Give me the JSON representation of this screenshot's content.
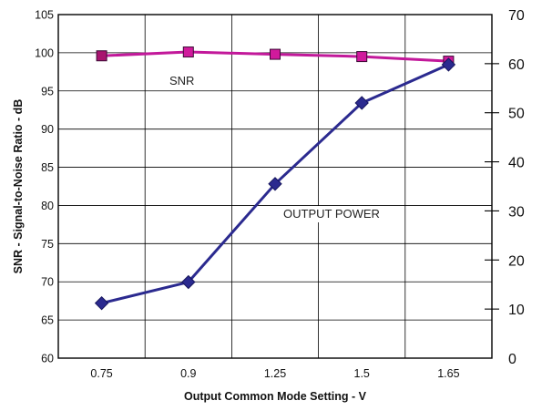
{
  "chart_data": {
    "type": "line",
    "title": "",
    "xlabel": "Output Common Mode Setting - V",
    "ylabel": "SNR - Signal-to-Noise Ratio - dB",
    "ylabel_right": "",
    "categories": [
      "0.75",
      "0.9",
      "1.25",
      "1.5",
      "1.65"
    ],
    "ylim": [
      60,
      105
    ],
    "yticks": [
      "60",
      "65",
      "70",
      "75",
      "80",
      "85",
      "90",
      "95",
      "100",
      "105"
    ],
    "ylim_right": [
      0,
      70
    ],
    "yticks_right": [
      "0",
      "10",
      "20",
      "30",
      "40",
      "50",
      "60",
      "70"
    ],
    "grid": true,
    "legend": "none",
    "series": [
      {
        "name": "SNR",
        "axis": "left",
        "marker": "square",
        "color": "#c2189a",
        "marker_fill": "#d01a9c",
        "values": [
          99.6,
          100.1,
          99.8,
          99.5,
          98.9
        ]
      },
      {
        "name": "OUTPUT POWER",
        "axis": "right",
        "marker": "diamond",
        "color": "#2b2a8f",
        "marker_fill": "#2b2a8f",
        "values": [
          11.2,
          15.5,
          35.5,
          52.0,
          59.8
        ]
      }
    ],
    "annotations": [
      "SNR",
      "OUTPUT POWER"
    ]
  }
}
